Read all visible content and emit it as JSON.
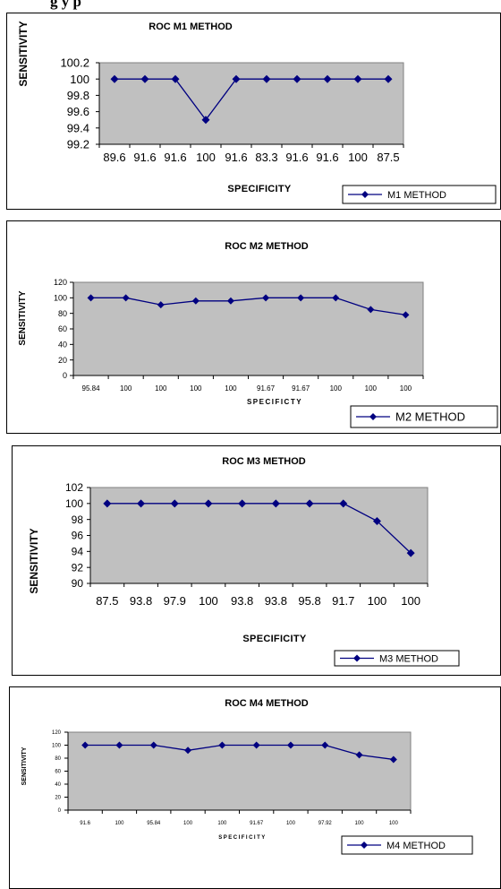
{
  "page": {
    "caption": "g                                                                        y        p"
  },
  "chart_data": [
    {
      "type": "line",
      "title": "ROC M1 METHOD",
      "xlabel": "SPECIFICITY",
      "ylabel": "SENSITIVITY",
      "categories": [
        "89.6",
        "91.6",
        "91.6",
        "100",
        "91.6",
        "83.3",
        "91.6",
        "91.6",
        "100",
        "87.5"
      ],
      "ylim": [
        99.2,
        100.2
      ],
      "yticks": [
        "99.2",
        "99.4",
        "99.6",
        "99.8",
        "100",
        "100.2"
      ],
      "grid": false,
      "legend_position": "bottom-right",
      "series": [
        {
          "name": "M1 METHOD",
          "values": [
            100,
            100,
            100,
            99.5,
            100,
            100,
            100,
            100,
            100,
            100
          ]
        }
      ],
      "colors": {
        "plot_bg": "#c0c0c0",
        "line": "#000080"
      }
    },
    {
      "type": "line",
      "title": "ROC M2 METHOD",
      "xlabel": "SPECIFICTY",
      "ylabel": "SENSITIVITY",
      "categories": [
        "95.84",
        "100",
        "100",
        "100",
        "100",
        "91.67",
        "91.67",
        "100",
        "100",
        "100"
      ],
      "ylim": [
        0,
        120
      ],
      "yticks": [
        "0",
        "20",
        "40",
        "60",
        "80",
        "100",
        "120"
      ],
      "grid": false,
      "legend_position": "bottom-right",
      "series": [
        {
          "name": "M2 METHOD",
          "values": [
            100,
            100,
            91,
            96,
            96,
            100,
            100,
            100,
            85,
            78
          ]
        }
      ],
      "colors": {
        "plot_bg": "#c0c0c0",
        "line": "#000080"
      }
    },
    {
      "type": "line",
      "title": "ROC M3 METHOD",
      "xlabel": "SPECIFICITY",
      "ylabel": "SENSITIVITY",
      "categories": [
        "87.5",
        "93.8",
        "97.9",
        "100",
        "93.8",
        "93.8",
        "95.8",
        "91.7",
        "100",
        "100"
      ],
      "ylim": [
        90,
        102
      ],
      "yticks": [
        "90",
        "92",
        "94",
        "96",
        "98",
        "100",
        "102"
      ],
      "grid": false,
      "legend_position": "bottom-right",
      "series": [
        {
          "name": "M3 METHOD",
          "values": [
            100,
            100,
            100,
            100,
            100,
            100,
            100,
            100,
            97.8,
            93.8
          ]
        }
      ],
      "colors": {
        "plot_bg": "#c0c0c0",
        "line": "#000080"
      }
    },
    {
      "type": "line",
      "title": "ROC M4 METHOD",
      "xlabel": "SPECIFICITY",
      "ylabel": "SENSITIVITY",
      "categories": [
        "91.6",
        "100",
        "95.84",
        "100",
        "100",
        "91.67",
        "100",
        "97.92",
        "100",
        "100"
      ],
      "ylim": [
        0,
        120
      ],
      "yticks": [
        "0",
        "20",
        "40",
        "60",
        "80",
        "100",
        "120"
      ],
      "grid": false,
      "legend_position": "bottom-right",
      "series": [
        {
          "name": "M4 METHOD",
          "values": [
            100,
            100,
            100,
            92,
            100,
            100,
            100,
            100,
            85,
            78
          ]
        }
      ],
      "colors": {
        "plot_bg": "#c0c0c0",
        "line": "#000080"
      }
    }
  ]
}
